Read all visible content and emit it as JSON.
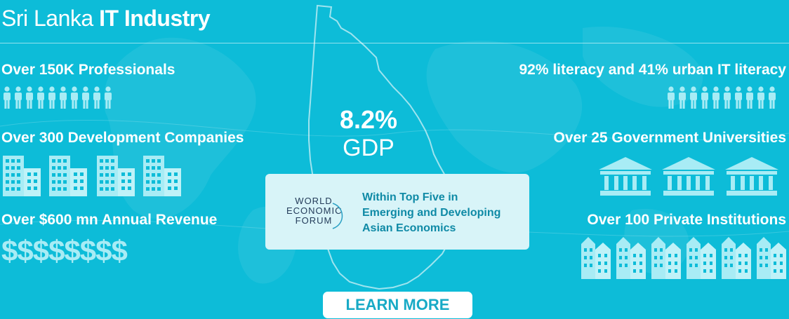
{
  "header": {
    "title_prefix": "Sri Lanka ",
    "title_strong": "IT Industry"
  },
  "left_stats": [
    {
      "label": "Over 150K Professionals",
      "icon": "person-icon"
    },
    {
      "label": "Over 300 Development Companies",
      "icon": "office-building-icon"
    },
    {
      "label": "Over $600 mn Annual Revenue",
      "icon": "dollar-sign-icon"
    }
  ],
  "right_stats": [
    {
      "label": "92% literacy and 41% urban IT literacy",
      "icon": "person-icon"
    },
    {
      "label": "Over 25 Government Universities",
      "icon": "university-building-icon"
    },
    {
      "label": "Over 100 Private Institutions",
      "icon": "institution-building-icon"
    }
  ],
  "dollar_signs": "$$$$$$$$",
  "gdp": {
    "value": "8.2%",
    "label": "GDP"
  },
  "wef": {
    "logo_lines": [
      "WORLD",
      "ECONOMIC",
      "FORUM"
    ],
    "text_lines": [
      "Within Top Five in",
      "Emerging and Developing",
      "Asian Economics"
    ]
  },
  "cta": {
    "label": "LEARN MORE"
  },
  "colors": {
    "background": "#0dbcd8",
    "icon_tint": "#a8ecf5",
    "card": "#d8f4f8",
    "wef_text": "#0f8aa6",
    "button_text": "#18aac6"
  }
}
